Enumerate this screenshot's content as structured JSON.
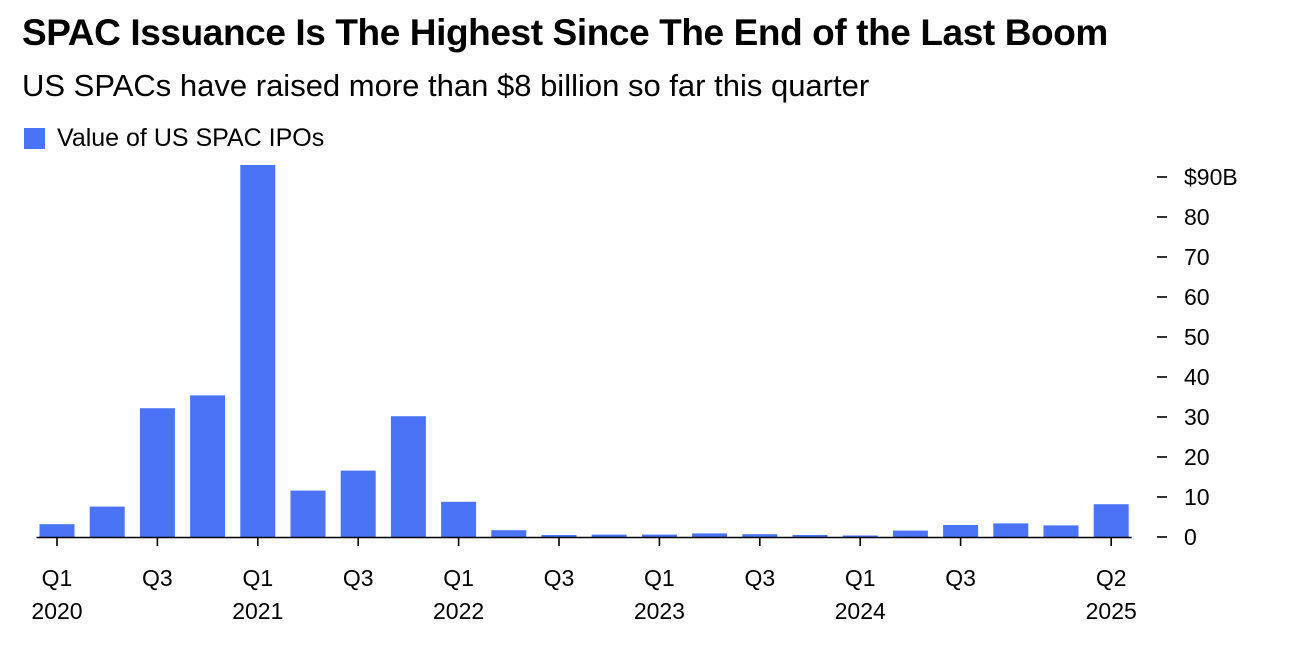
{
  "chart_data": {
    "type": "bar",
    "title": "SPAC Issuance Is The Highest Since The End of the Last Boom",
    "subtitle": "US SPACs have raised more than $8 billion so far this quarter",
    "legend": {
      "position": "top-left",
      "entries": [
        "Value of US SPAC IPOs"
      ]
    },
    "colors": {
      "bar": "#4a74f5",
      "text": "#000000",
      "axis": "#000000"
    },
    "categories": [
      "Q1 2020",
      "Q2 2020",
      "Q3 2020",
      "Q4 2020",
      "Q1 2021",
      "Q2 2021",
      "Q3 2021",
      "Q4 2021",
      "Q1 2022",
      "Q2 2022",
      "Q3 2022",
      "Q4 2022",
      "Q1 2023",
      "Q2 2023",
      "Q3 2023",
      "Q4 2023",
      "Q1 2024",
      "Q2 2024",
      "Q3 2024",
      "Q4 2024",
      "Q1 2025",
      "Q2 2025"
    ],
    "series": [
      {
        "name": "Value of US SPAC IPOs",
        "values": [
          3.2,
          7.6,
          32.2,
          35.4,
          93.0,
          11.6,
          16.6,
          30.2,
          8.8,
          1.7,
          0.5,
          0.6,
          0.6,
          0.9,
          0.7,
          0.5,
          0.3,
          1.6,
          3.0,
          3.4,
          2.9,
          8.2
        ]
      }
    ],
    "x_tick_labels": [
      {
        "index": 0,
        "quarter": "Q1",
        "year": "2020"
      },
      {
        "index": 2,
        "quarter": "Q3",
        "year": ""
      },
      {
        "index": 4,
        "quarter": "Q1",
        "year": "2021"
      },
      {
        "index": 6,
        "quarter": "Q3",
        "year": ""
      },
      {
        "index": 8,
        "quarter": "Q1",
        "year": "2022"
      },
      {
        "index": 10,
        "quarter": "Q3",
        "year": ""
      },
      {
        "index": 12,
        "quarter": "Q1",
        "year": "2023"
      },
      {
        "index": 14,
        "quarter": "Q3",
        "year": ""
      },
      {
        "index": 16,
        "quarter": "Q1",
        "year": "2024"
      },
      {
        "index": 18,
        "quarter": "Q3",
        "year": ""
      },
      {
        "index": 21,
        "quarter": "Q2",
        "year": "2025"
      }
    ],
    "y_ticks": [
      {
        "value": 90,
        "label": "$90B"
      },
      {
        "value": 80,
        "label": "80"
      },
      {
        "value": 70,
        "label": "70"
      },
      {
        "value": 60,
        "label": "60"
      },
      {
        "value": 50,
        "label": "50"
      },
      {
        "value": 40,
        "label": "40"
      },
      {
        "value": 30,
        "label": "30"
      },
      {
        "value": 20,
        "label": "20"
      },
      {
        "value": 10,
        "label": "10"
      },
      {
        "value": 0,
        "label": "0"
      }
    ],
    "ylim": [
      0,
      93
    ],
    "y_axis_side": "right",
    "grid": false
  }
}
